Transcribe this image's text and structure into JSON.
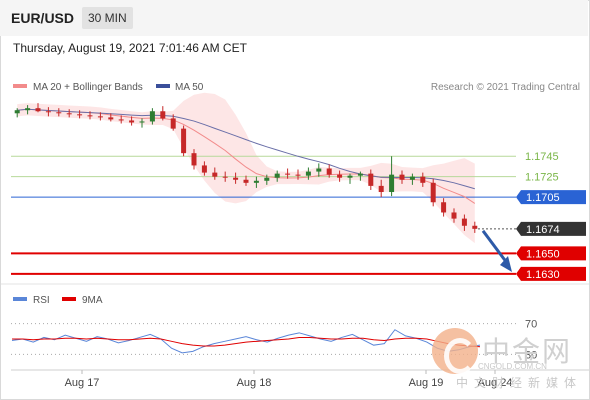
{
  "header": {
    "symbol": "EUR/USD",
    "interval": "30 MIN"
  },
  "datetime": "Thursday, August 19, 2021 7:01:46 AM CET",
  "legend": {
    "ma20": "MA 20 + Bollinger Bands",
    "ma50": "MA 50",
    "credit": "Research © 2021 Trading Central",
    "rsi": "RSI",
    "ma9": "9MA"
  },
  "watermark": {
    "name": "中金网",
    "url": "CNGOLD.COM.CN",
    "sub": "中文财经新媒体"
  },
  "colors": {
    "up": "#2e7d32",
    "down": "#c62828",
    "ma20": "#f28b8b",
    "bollinger": "#fde3e3",
    "ma50": "#6a6fa8",
    "resistance": "#7ab648",
    "pivot": "#2a63d4",
    "support": "#e00000",
    "current": "#333333",
    "rsi": "#5a86d8",
    "ma9": "#e00000"
  },
  "chart_data": {
    "type": "candlestick",
    "x_ticks": [
      "Aug 17",
      "Aug 18",
      "Aug 19",
      "Aug 24"
    ],
    "candles_approx": [
      [
        1.1787,
        1.1792,
        1.1783,
        1.179
      ],
      [
        1.179,
        1.1795,
        1.1786,
        1.1792
      ],
      [
        1.1792,
        1.1797,
        1.1788,
        1.1789
      ],
      [
        1.1789,
        1.1793,
        1.1784,
        1.1788
      ],
      [
        1.1788,
        1.1792,
        1.1784,
        1.1787
      ],
      [
        1.1787,
        1.1791,
        1.1783,
        1.1786
      ],
      [
        1.1786,
        1.179,
        1.1782,
        1.1785
      ],
      [
        1.1785,
        1.1789,
        1.1781,
        1.1784
      ],
      [
        1.1784,
        1.1788,
        1.178,
        1.1783
      ],
      [
        1.1783,
        1.1787,
        1.1779,
        1.1781
      ],
      [
        1.1781,
        1.1785,
        1.1777,
        1.178
      ],
      [
        1.178,
        1.1784,
        1.1775,
        1.1778
      ],
      [
        1.1778,
        1.1782,
        1.1773,
        1.1779
      ],
      [
        1.1779,
        1.1792,
        1.1776,
        1.1789
      ],
      [
        1.1789,
        1.1794,
        1.178,
        1.1782
      ],
      [
        1.1782,
        1.1786,
        1.177,
        1.1772
      ],
      [
        1.1772,
        1.1775,
        1.1745,
        1.1748
      ],
      [
        1.1748,
        1.1752,
        1.1732,
        1.1736
      ],
      [
        1.1736,
        1.174,
        1.1726,
        1.1729
      ],
      [
        1.1729,
        1.1734,
        1.1722,
        1.1725
      ],
      [
        1.1725,
        1.173,
        1.172,
        1.1724
      ],
      [
        1.1724,
        1.1729,
        1.1718,
        1.1722
      ],
      [
        1.1722,
        1.1726,
        1.1716,
        1.1719
      ],
      [
        1.1719,
        1.1725,
        1.1714,
        1.1721
      ],
      [
        1.1721,
        1.1727,
        1.1717,
        1.1724
      ],
      [
        1.1724,
        1.1731,
        1.172,
        1.1728
      ],
      [
        1.1728,
        1.1733,
        1.1723,
        1.1727
      ],
      [
        1.1727,
        1.1732,
        1.1722,
        1.1726
      ],
      [
        1.1726,
        1.1734,
        1.1722,
        1.173
      ],
      [
        1.173,
        1.1738,
        1.1725,
        1.1733
      ],
      [
        1.1733,
        1.1737,
        1.1724,
        1.1727
      ],
      [
        1.1727,
        1.1731,
        1.172,
        1.1724
      ],
      [
        1.1724,
        1.1728,
        1.1718,
        1.1726
      ],
      [
        1.1726,
        1.173,
        1.1721,
        1.1728
      ],
      [
        1.1728,
        1.1732,
        1.1712,
        1.1716
      ],
      [
        1.1716,
        1.1722,
        1.1705,
        1.171
      ],
      [
        1.171,
        1.1745,
        1.1706,
        1.1727
      ],
      [
        1.1727,
        1.1731,
        1.1718,
        1.1722
      ],
      [
        1.1722,
        1.1728,
        1.1717,
        1.1725
      ],
      [
        1.1725,
        1.1729,
        1.1715,
        1.1719
      ],
      [
        1.1719,
        1.1723,
        1.1696,
        1.17
      ],
      [
        1.17,
        1.1704,
        1.1686,
        1.169
      ],
      [
        1.169,
        1.1694,
        1.168,
        1.1684
      ],
      [
        1.1684,
        1.1688,
        1.1672,
        1.1677
      ],
      [
        1.1677,
        1.1681,
        1.167,
        1.1674
      ]
    ],
    "levels": {
      "resistance": [
        1.1745,
        1.1725
      ],
      "pivot": 1.1705,
      "current": 1.1674,
      "support": [
        1.165,
        1.163
      ]
    },
    "level_labels": {
      "r1": "1.1745",
      "r2": "1.1725",
      "pivot": "1.1705",
      "current": "1.1674",
      "s1": "1.1650",
      "s2": "1.1630"
    },
    "ylim": [
      1.1622,
      1.18
    ],
    "rsi": {
      "levels": [
        70,
        30
      ],
      "level_labels": [
        "70",
        "30"
      ],
      "values_approx": [
        48,
        50,
        46,
        52,
        49,
        55,
        51,
        47,
        53,
        50,
        45,
        48,
        52,
        56,
        50,
        38,
        32,
        34,
        40,
        44,
        47,
        50,
        53,
        49,
        46,
        51,
        55,
        58,
        54,
        50,
        47,
        52,
        56,
        49,
        42,
        44,
        62,
        54,
        51,
        46,
        38,
        34,
        36,
        40,
        42
      ],
      "ma9_approx": [
        50,
        50,
        49,
        50,
        50,
        51,
        51,
        50,
        51,
        50,
        49,
        49,
        50,
        51,
        50,
        47,
        44,
        42,
        41,
        41,
        42,
        44,
        46,
        47,
        48,
        49,
        50,
        52,
        52,
        51,
        50,
        50,
        51,
        51,
        49,
        48,
        50,
        51,
        51,
        50,
        47,
        44,
        42,
        41,
        40
      ]
    }
  }
}
